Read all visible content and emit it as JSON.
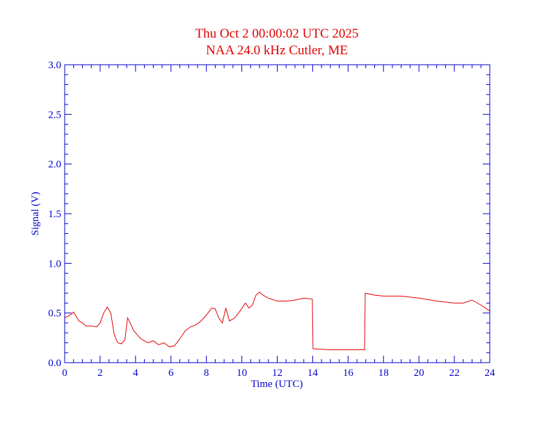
{
  "chart_data": {
    "type": "line",
    "title": "Thu Oct 2 00:00:02 UTC 2025",
    "subtitle": "NAA 24.0 kHz Cutler, ME",
    "xlabel": "Time (UTC)",
    "ylabel": "Signal (V)",
    "xlim": [
      0,
      24
    ],
    "ylim": [
      0,
      3.0
    ],
    "xticks": [
      "0",
      "2",
      "4",
      "6",
      "8",
      "10",
      "12",
      "14",
      "16",
      "18",
      "20",
      "22",
      "24"
    ],
    "yticks": [
      "0.0",
      "0.5",
      "1.0",
      "1.5",
      "2.0",
      "2.5",
      "3.0"
    ],
    "grid": false,
    "colors": {
      "axis": "#0000cc",
      "series": "#e00000",
      "title": "#e00000"
    },
    "series": [
      {
        "x": [
          0,
          0.2,
          0.4,
          0.5,
          0.6,
          0.8,
          1.0,
          1.2,
          1.5,
          1.8,
          2.0,
          2.2,
          2.4,
          2.6,
          2.8,
          3.0,
          3.2,
          3.4,
          3.55,
          3.7,
          3.9,
          4.1,
          4.3,
          4.5,
          4.7,
          5.0,
          5.3,
          5.6,
          5.9,
          6.2,
          6.5,
          6.8,
          7.1,
          7.4,
          7.7,
          8.0,
          8.3,
          8.5,
          8.7,
          8.9,
          9.1,
          9.3,
          9.6,
          9.9,
          10.2,
          10.4,
          10.6,
          10.8,
          11.0,
          11.2,
          11.5,
          12.0,
          12.5,
          13.0,
          13.5,
          13.98,
          14.02,
          15.0,
          16.0,
          16.93,
          16.97,
          17.5,
          18.0,
          19.0,
          20.0,
          21.0,
          22.0,
          22.5,
          23.0,
          23.5,
          24.0
        ],
        "y": [
          0.45,
          0.47,
          0.49,
          0.51,
          0.48,
          0.42,
          0.4,
          0.37,
          0.37,
          0.36,
          0.4,
          0.5,
          0.56,
          0.5,
          0.28,
          0.2,
          0.19,
          0.23,
          0.45,
          0.4,
          0.32,
          0.28,
          0.24,
          0.22,
          0.2,
          0.22,
          0.18,
          0.2,
          0.16,
          0.17,
          0.24,
          0.32,
          0.36,
          0.38,
          0.42,
          0.48,
          0.55,
          0.54,
          0.45,
          0.4,
          0.55,
          0.42,
          0.45,
          0.52,
          0.6,
          0.55,
          0.58,
          0.68,
          0.71,
          0.68,
          0.65,
          0.62,
          0.62,
          0.63,
          0.65,
          0.64,
          0.14,
          0.13,
          0.13,
          0.13,
          0.7,
          0.68,
          0.67,
          0.67,
          0.65,
          0.62,
          0.6,
          0.6,
          0.63,
          0.58,
          0.52
        ]
      }
    ]
  }
}
